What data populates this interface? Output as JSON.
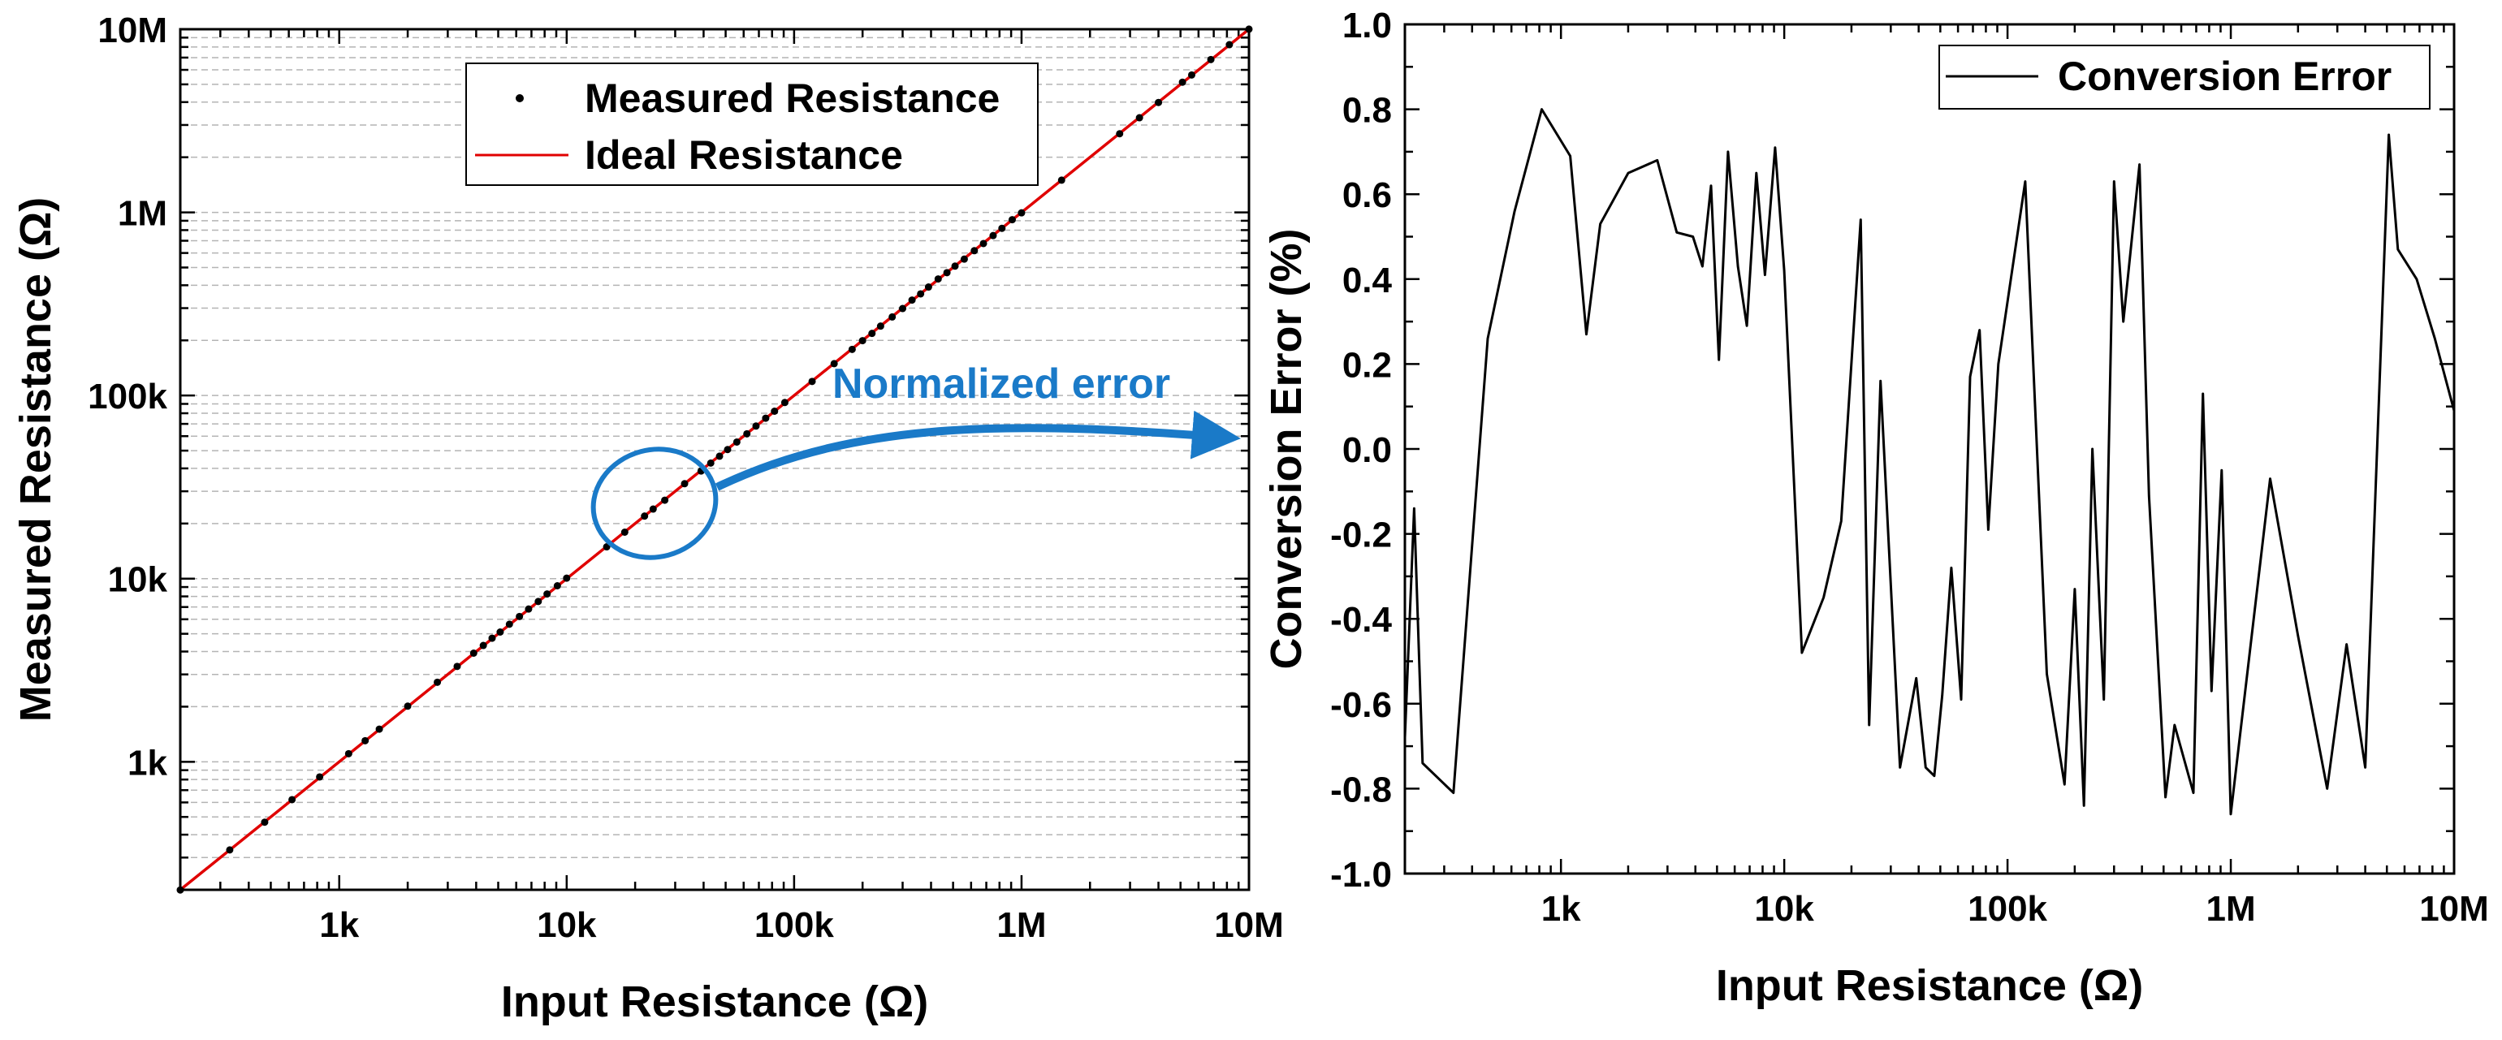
{
  "colors": {
    "axis": "#000000",
    "grid": "#b4b4b4",
    "ideal_line": "#e00000",
    "measured_point": "#000000",
    "error_line": "#000000",
    "annotation": "#1a7ac8"
  },
  "chart_data": [
    {
      "type": "scatter",
      "id": "left",
      "title": "",
      "xlabel": "Input Resistance (Ω)",
      "ylabel": "Measured Resistance (Ω)",
      "xscale": "log",
      "yscale": "log",
      "xlim": [
        200,
        10000000
      ],
      "ylim": [
        200,
        10000000
      ],
      "grid": "horizontal minor dashed",
      "legend_position": "top-center",
      "x_ticks": [
        {
          "value": 1000,
          "label": "1k"
        },
        {
          "value": 10000,
          "label": "10k"
        },
        {
          "value": 100000,
          "label": "100k"
        },
        {
          "value": 1000000,
          "label": "1M"
        },
        {
          "value": 10000000,
          "label": "10M"
        }
      ],
      "y_ticks": [
        {
          "value": 1000,
          "label": "1k"
        },
        {
          "value": 10000,
          "label": "10k"
        },
        {
          "value": 100000,
          "label": "100k"
        },
        {
          "value": 1000000,
          "label": "1M"
        },
        {
          "value": 10000000,
          "label": "10M"
        }
      ],
      "series": [
        {
          "name": "Measured Resistance",
          "style": "points",
          "x": [
            200,
            330,
            470,
            620,
            820,
            1100,
            1300,
            1500,
            2000,
            2700,
            3300,
            3900,
            4300,
            4700,
            5100,
            5600,
            6200,
            6800,
            7500,
            8200,
            9100,
            10000,
            15000,
            18000,
            22000,
            24000,
            27000,
            33000,
            39000,
            43000,
            47000,
            51000,
            56000,
            62000,
            68000,
            75000,
            82000,
            91000,
            120000,
            150000,
            180000,
            200000,
            220000,
            240000,
            270000,
            300000,
            330000,
            360000,
            390000,
            430000,
            470000,
            510000,
            560000,
            620000,
            680000,
            750000,
            820000,
            910000,
            1000000,
            1500000,
            2700000,
            3300000,
            4000000,
            5100000,
            5600000,
            6800000,
            8200000,
            10000000
          ],
          "y": [
            199.6,
            330.2,
            468.0,
            621.3,
            826.5,
            1107.5,
            1303.5,
            1507.9,
            2012.9,
            2718.4,
            3317.5,
            3919.7,
            4318.4,
            4729.6,
            5111.0,
            5638.6,
            6216.3,
            6825.1,
            7503.9,
            8250.3,
            9145.5,
            10068.0,
            14925.0,
            17937.0,
            21968.0,
            23979.0,
            26824.0,
            32990.0,
            38708.0,
            42767.0,
            46639.0,
            50679.0,
            55706.0,
            61777.0,
            68100.0,
            75195.0,
            82092.0,
            91556.0,
            119370.0,
            149280.0,
            178590.0,
            199360.0,
            218330.0,
            239380.0,
            268420.0,
            298410.0,
            332060.0,
            358920.0,
            391170.0,
            432850.0,
            468730.0,
            508720.0,
            555630.0,
            617650.0,
            675720.0,
            747000.0,
            818360.0,
            912350.0,
            994300.0,
            1499000.0,
            2687000.0,
            3285000.0,
            3982000.0,
            5137900.0,
            5626000.0,
            6831000.0,
            8232000.0,
            10008000.0
          ]
        },
        {
          "name": "Ideal Resistance",
          "style": "line",
          "x": [
            200,
            10000000
          ],
          "y": [
            200,
            10000000
          ]
        }
      ],
      "annotations": [
        {
          "type": "ellipse",
          "x_center": 30000,
          "y_center": 27000,
          "note": "highlighted region"
        },
        {
          "type": "arrow",
          "label": "Normalized error",
          "points_to": "right panel"
        }
      ]
    },
    {
      "type": "line",
      "id": "right",
      "title": "",
      "xlabel": "Input Resistance (Ω)",
      "ylabel": "Conversion Error (%)",
      "xscale": "log",
      "yscale": "linear",
      "xlim": [
        200,
        10000000
      ],
      "ylim": [
        -1.0,
        1.0
      ],
      "grid": "off",
      "legend_position": "top-right",
      "x_ticks": [
        {
          "value": 1000,
          "label": "1k"
        },
        {
          "value": 10000,
          "label": "10k"
        },
        {
          "value": 100000,
          "label": "100k"
        },
        {
          "value": 1000000,
          "label": "1M"
        },
        {
          "value": 10000000,
          "label": "10M"
        }
      ],
      "y_ticks": [
        {
          "value": 1.0,
          "label": "1.0"
        },
        {
          "value": 0.8,
          "label": "0.8"
        },
        {
          "value": 0.6,
          "label": "0.6"
        },
        {
          "value": 0.4,
          "label": "0.4"
        },
        {
          "value": 0.2,
          "label": "0.2"
        },
        {
          "value": 0.0,
          "label": "0.0"
        },
        {
          "value": -0.2,
          "label": "-0.2"
        },
        {
          "value": -0.4,
          "label": "-0.4"
        },
        {
          "value": -0.6,
          "label": "-0.6"
        },
        {
          "value": -0.8,
          "label": "-0.8"
        },
        {
          "value": -1.0,
          "label": "-1.0"
        }
      ],
      "series": [
        {
          "name": "Conversion Error",
          "x": [
            200,
            220,
            240,
            330,
            470,
            620,
            820,
            1100,
            1300,
            1500,
            2000,
            2700,
            3300,
            3900,
            4300,
            4700,
            5100,
            5600,
            6200,
            6800,
            7500,
            8200,
            9100,
            10000,
            12000,
            15000,
            18000,
            22000,
            24000,
            27000,
            33000,
            39000,
            43000,
            47000,
            51000,
            56000,
            62000,
            68000,
            75000,
            82000,
            91000,
            120000,
            150000,
            180000,
            200000,
            220000,
            240000,
            270000,
            300000,
            330000,
            390000,
            430000,
            510000,
            560000,
            680000,
            750000,
            820000,
            910000,
            1000000,
            1500000,
            2000000,
            2700000,
            3300000,
            4000000,
            5100000,
            5600000,
            6800000,
            8200000,
            10000000
          ],
          "y": [
            -0.68,
            -0.14,
            -0.74,
            -0.81,
            0.26,
            0.56,
            0.8,
            0.69,
            0.27,
            0.53,
            0.65,
            0.68,
            0.51,
            0.5,
            0.43,
            0.62,
            0.21,
            0.7,
            0.43,
            0.29,
            0.65,
            0.41,
            0.71,
            0.42,
            -0.48,
            -0.35,
            -0.17,
            0.54,
            -0.65,
            0.16,
            -0.75,
            -0.54,
            -0.75,
            -0.77,
            -0.58,
            -0.28,
            -0.59,
            0.17,
            0.28,
            -0.19,
            0.2,
            0.63,
            -0.53,
            -0.79,
            -0.33,
            -0.84,
            0.0,
            -0.59,
            0.63,
            0.3,
            0.67,
            -0.11,
            -0.82,
            -0.65,
            -0.81,
            0.13,
            -0.57,
            -0.05,
            -0.86,
            -0.07,
            -0.44,
            -0.8,
            -0.46,
            -0.75,
            0.74,
            0.47,
            0.4,
            0.26,
            0.09
          ]
        }
      ]
    }
  ]
}
